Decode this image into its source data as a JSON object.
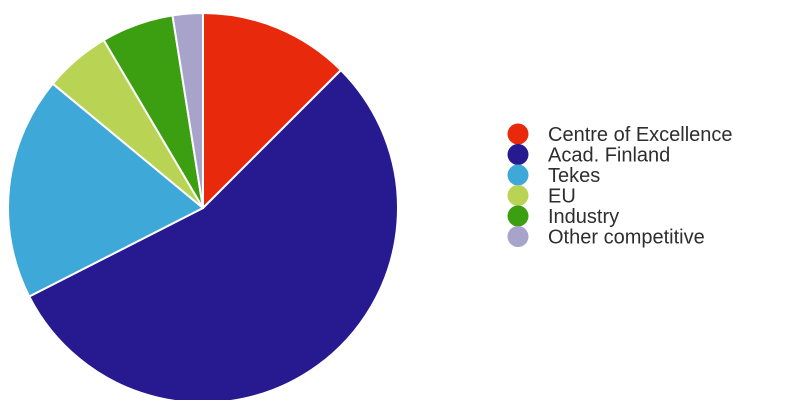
{
  "chart_data": {
    "type": "pie",
    "title": "",
    "legend_position": "right",
    "slices": [
      {
        "label": "Centre of Excellence",
        "value": 12.5,
        "color": "#e8290b"
      },
      {
        "label": "Acad. Finland",
        "value": 55.0,
        "color": "#27198f"
      },
      {
        "label": "Tekes",
        "value": 18.5,
        "color": "#3ea8d8"
      },
      {
        "label": "EU",
        "value": 5.5,
        "color": "#b9d455"
      },
      {
        "label": "Industry",
        "value": 6.0,
        "color": "#3c9f12"
      },
      {
        "label": "Other competitive",
        "value": 2.5,
        "color": "#a8a3cb"
      }
    ]
  }
}
